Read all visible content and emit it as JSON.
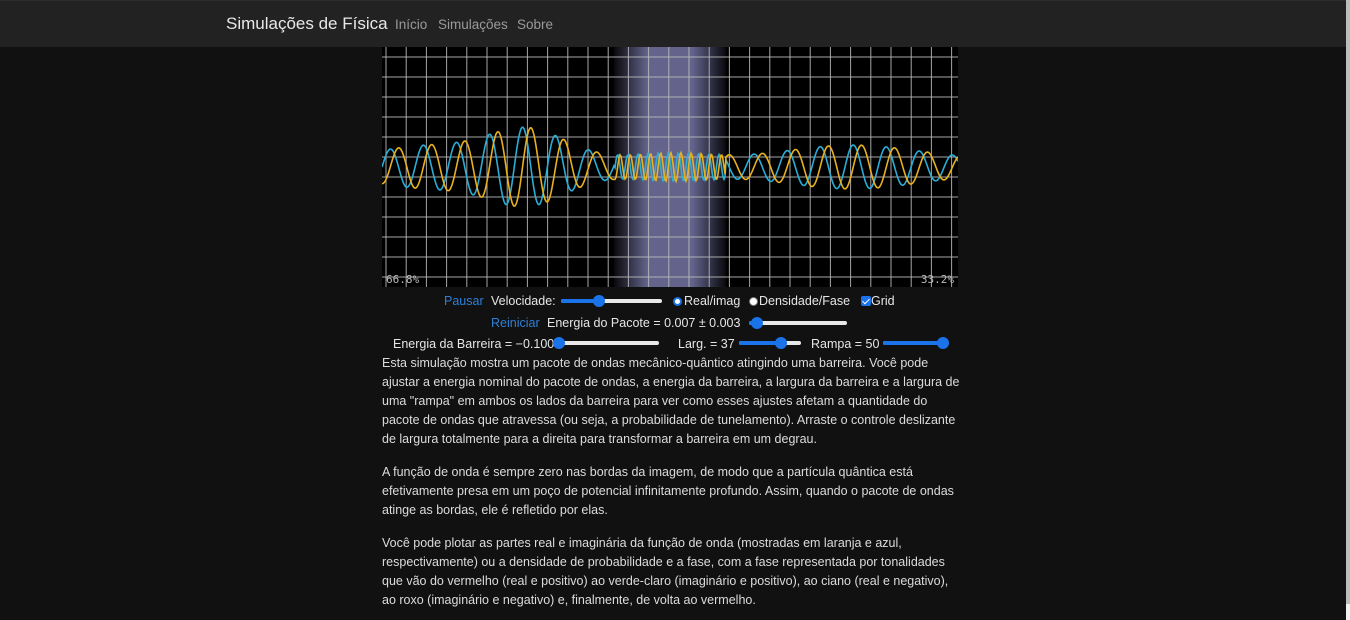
{
  "navbar": {
    "brand": "Simulações de Física",
    "links": [
      "Início",
      "Simulações",
      "Sobre"
    ]
  },
  "simulation": {
    "left_percent": "66.8%",
    "right_percent": "33.2%",
    "colors": {
      "real": "#e8b120",
      "imag": "#2aaed8",
      "grid": "#b8b8b8",
      "barrier": "#b4b4ff"
    }
  },
  "controls": {
    "pause_label": "Pausar",
    "speed_label": "Velocidade:",
    "speed_value": 0.38,
    "mode_real_imag": "Real/imag",
    "mode_density_phase": "Densidade/Fase",
    "grid_label": "Grid",
    "reset_label": "Reiniciar",
    "packet_energy_label": "Energia do Pacote = 0.007 ± 0.003",
    "packet_energy_value": 0.08,
    "barrier_energy_label": "Energia da Barreira = −0.100",
    "barrier_energy_value": 0.02,
    "width_label": "Larg. = 37",
    "width_value": 0.68,
    "ramp_label": "Rampa = 50",
    "ramp_value": 0.97
  },
  "description": [
    "Esta simulação mostra um pacote de ondas mecânico-quântico atingindo uma barreira. Você pode ajustar a energia nominal do pacote de ondas, a energia da barreira, a largura da barreira e a largura de uma \"rampa\" em ambos os lados da barreira para ver como esses ajustes afetam a quantidade do pacote de ondas que atravessa (ou seja, a probabilidade de tunelamento). Arraste o controle deslizante de largura totalmente para a direita para transformar a barreira em um degrau.",
    "A função de onda é sempre zero nas bordas da imagem, de modo que a partícula quântica está efetivamente presa em um poço de potencial infinitamente profundo. Assim, quando o pacote de ondas atinge as bordas, ele é refletido por elas.",
    "Você pode plotar as partes real e imaginária da função de onda (mostradas em laranja e azul, respectivamente) ou a densidade de probabilidade e a fase, com a fase representada por tonalidades que vão do vermelho (real e positivo) ao verde-claro (imaginário e positivo), ao ciano (real e negativo), ao roxo (imaginário e negativo) e, finalmente, de volta ao vermelho."
  ]
}
